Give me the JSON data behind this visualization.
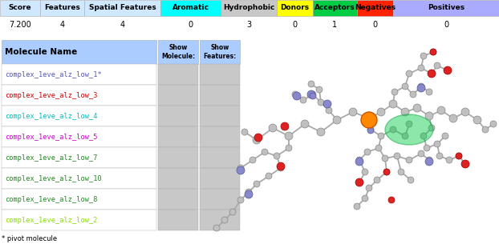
{
  "header_cols": [
    "Score",
    "Features",
    "Spatial Features",
    "Aromatic",
    "Hydrophobic",
    "Donors",
    "Acceptors",
    "Negatives",
    "Positives"
  ],
  "header_colors": [
    "#d0e8ff",
    "#d0e8ff",
    "#d0e8ff",
    "#00ffff",
    "#c8c8c8",
    "#ffff00",
    "#00cc44",
    "#ff2200",
    "#aaaaff"
  ],
  "values_row": [
    "7.200",
    "4",
    "4",
    "0",
    "3",
    "0",
    "1",
    "0",
    "0"
  ],
  "table_header_bg": "#aaccff",
  "molecules": [
    {
      "name": "complex_1eve_alz_low_1*",
      "color": "#5555bb"
    },
    {
      "name": "complex_1eve_alz_low_3",
      "color": "#cc0000"
    },
    {
      "name": "complex_1eve_alz_low_4",
      "color": "#00bbbb"
    },
    {
      "name": "complex_1eve_alz_low_5",
      "color": "#cc00cc"
    },
    {
      "name": "complex_1eve_alz_low_7",
      "color": "#228822"
    },
    {
      "name": "complex_1eve_alz_low_10",
      "color": "#228822"
    },
    {
      "name": "complex_1eve_alz_low_8",
      "color": "#228822"
    },
    {
      "name": "complex_1eve_alz_low_2",
      "color": "#88dd00"
    }
  ],
  "pivot_note": "* pivot molecule",
  "bg_color": "#ffffff",
  "cell_bg": "#c8c8c8"
}
